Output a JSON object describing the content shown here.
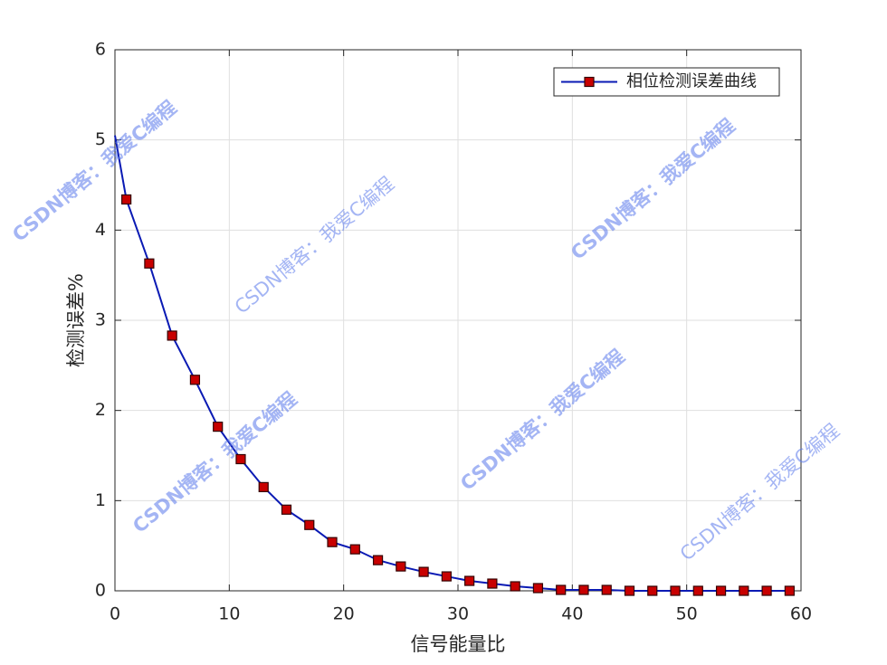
{
  "chart_data": {
    "type": "line",
    "xlabel": "信号能量比",
    "ylabel": "检测误差%",
    "watermark": "CSDN博客：我爱C编程",
    "x": [
      0,
      1,
      3,
      5,
      7,
      9,
      11,
      13,
      15,
      17,
      19,
      21,
      23,
      25,
      27,
      29,
      31,
      33,
      35,
      37,
      39,
      41,
      43,
      45,
      47,
      49,
      51,
      53,
      55,
      57,
      59
    ],
    "series": [
      {
        "name": "相位检测误差曲线",
        "color": "#0a1ab4",
        "marker_color": "#c80000",
        "values": [
          5.05,
          4.34,
          3.63,
          2.83,
          2.34,
          1.82,
          1.46,
          1.15,
          0.9,
          0.73,
          0.54,
          0.46,
          0.34,
          0.27,
          0.21,
          0.16,
          0.11,
          0.08,
          0.05,
          0.03,
          0.01,
          0.01,
          0.01,
          0,
          0,
          0,
          0,
          0,
          0,
          0,
          0
        ]
      }
    ],
    "markers_skip_first": true,
    "xlim": [
      0,
      60
    ],
    "xticks": [
      0,
      10,
      20,
      30,
      40,
      50,
      60
    ],
    "ylim": [
      0,
      6
    ],
    "yticks": [
      0,
      1,
      2,
      3,
      4,
      5,
      6
    ],
    "grid": true,
    "legend": "upper right"
  }
}
